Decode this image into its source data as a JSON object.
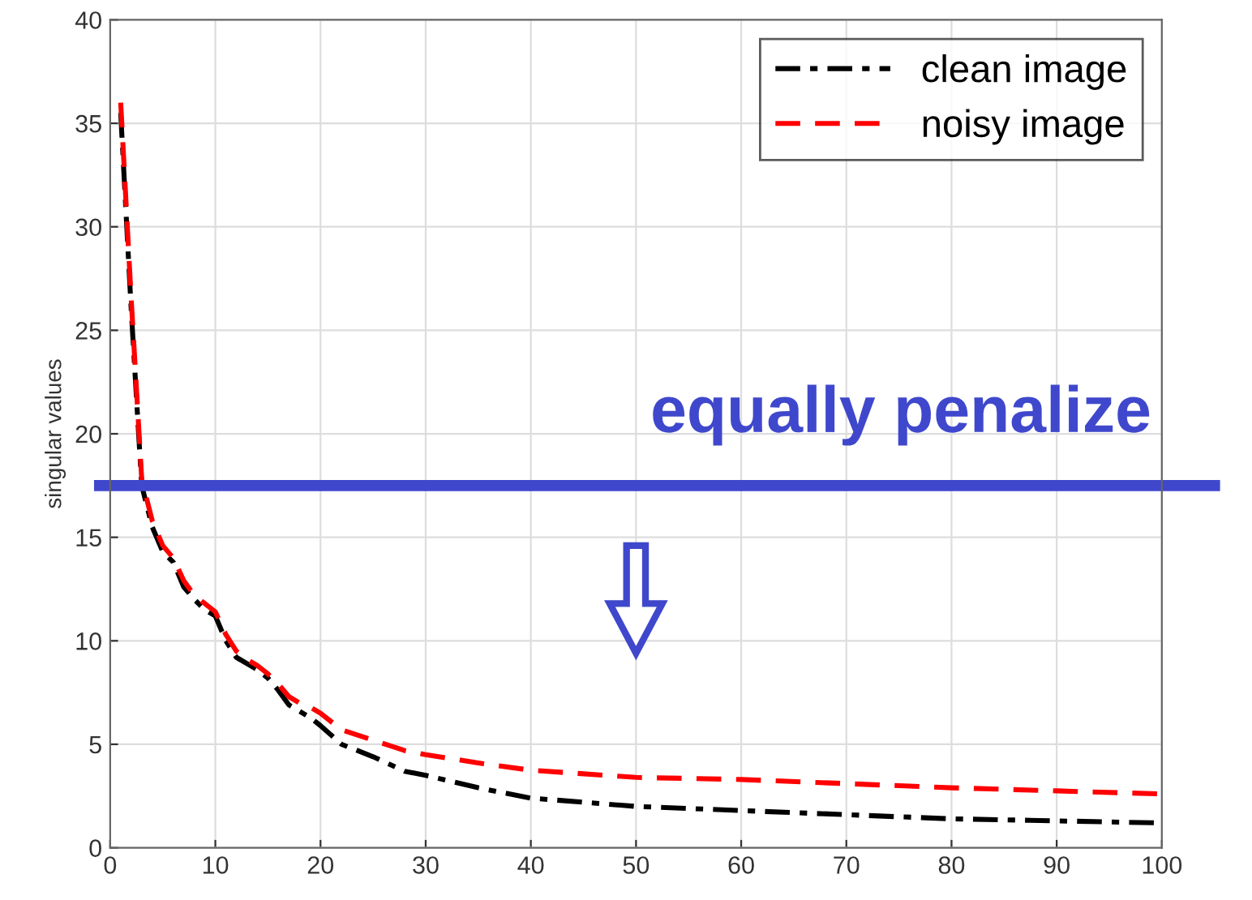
{
  "chart_data": {
    "type": "line",
    "ylabel": "singular values",
    "xlim": [
      0,
      100
    ],
    "ylim": [
      0,
      40
    ],
    "xticks": [
      0,
      10,
      20,
      30,
      40,
      50,
      60,
      70,
      80,
      90,
      100
    ],
    "yticks": [
      0,
      5,
      10,
      15,
      20,
      25,
      30,
      35,
      40
    ],
    "grid": true,
    "legend": "top right",
    "marker": "none",
    "series": [
      {
        "name": "clean image",
        "color": "#000000",
        "line_style": "dashdot",
        "x": [
          1,
          2,
          3,
          4,
          5,
          6,
          7,
          8,
          9,
          10,
          11,
          12,
          13,
          14,
          15,
          16,
          17,
          18,
          19,
          20,
          22,
          25,
          28,
          30,
          35,
          40,
          50,
          60,
          70,
          80,
          90,
          100
        ],
        "values": [
          35.5,
          26,
          17.5,
          15.5,
          14.3,
          13.8,
          12.6,
          12,
          11.5,
          11.2,
          10,
          9.2,
          8.9,
          8.6,
          8.2,
          7.6,
          6.9,
          6.6,
          6.3,
          5.9,
          5.0,
          4.4,
          3.7,
          3.5,
          2.9,
          2.4,
          2.0,
          1.8,
          1.6,
          1.4,
          1.3,
          1.2
        ]
      },
      {
        "name": "noisy image",
        "color": "#ff0000",
        "line_style": "dashed",
        "x": [
          1,
          2,
          3,
          4,
          5,
          6,
          7,
          8,
          9,
          10,
          11,
          12,
          13,
          14,
          15,
          16,
          17,
          18,
          19,
          20,
          22,
          25,
          28,
          30,
          35,
          40,
          50,
          60,
          70,
          80,
          90,
          100
        ],
        "values": [
          36,
          26.5,
          17.8,
          15.8,
          14.6,
          14,
          12.9,
          12.2,
          11.8,
          11.4,
          10.3,
          9.5,
          9.1,
          8.8,
          8.4,
          7.9,
          7.3,
          7.0,
          6.8,
          6.5,
          5.7,
          5.2,
          4.7,
          4.5,
          4.1,
          3.75,
          3.4,
          3.3,
          3.1,
          2.9,
          2.75,
          2.6
        ]
      }
    ],
    "ref_lines": [
      {
        "axis": "y",
        "value": 17.5,
        "label": "equally penalize",
        "color": "#3f48cc"
      }
    ]
  }
}
